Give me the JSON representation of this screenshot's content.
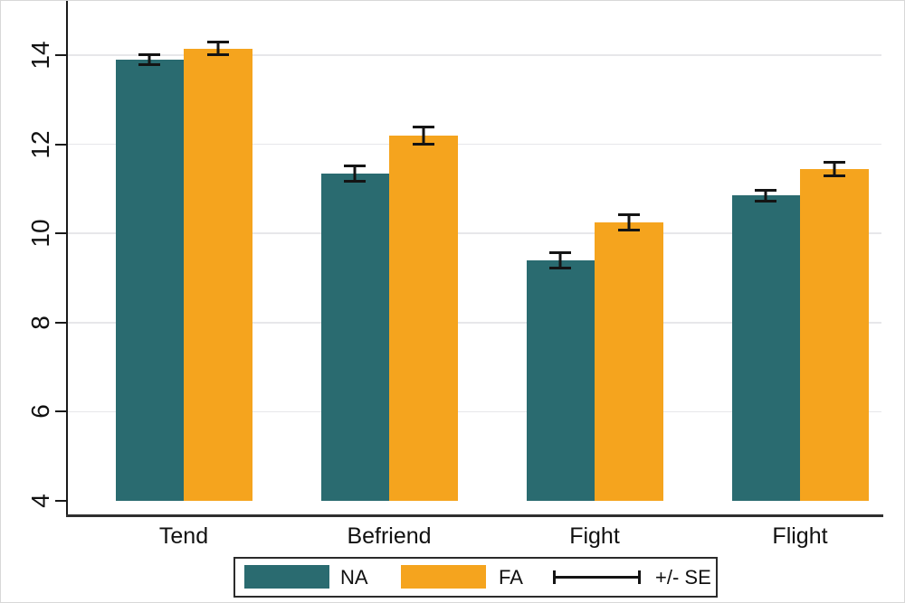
{
  "chart_data": {
    "type": "bar",
    "title": "",
    "xlabel": "",
    "ylabel": "",
    "categories": [
      "Tend",
      "Befriend",
      "Fight",
      "Flight"
    ],
    "series": [
      {
        "name": "NA",
        "color": "#2a6b70",
        "values": [
          13.9,
          11.35,
          9.4,
          10.85
        ],
        "se": [
          0.15,
          0.2,
          0.2,
          0.15
        ]
      },
      {
        "name": "FA",
        "color": "#f5a41e",
        "values": [
          14.15,
          12.2,
          10.25,
          11.45
        ],
        "se": [
          0.17,
          0.22,
          0.2,
          0.18
        ]
      }
    ],
    "error_bars": "+/- SE",
    "y_axis": {
      "min": 4,
      "max": 14.8,
      "ticks": [
        4,
        6,
        8,
        10,
        12,
        14
      ]
    },
    "grid": true,
    "legend": {
      "position": "bottom",
      "items": [
        "NA",
        "FA"
      ],
      "se_label": "+/- SE"
    }
  }
}
